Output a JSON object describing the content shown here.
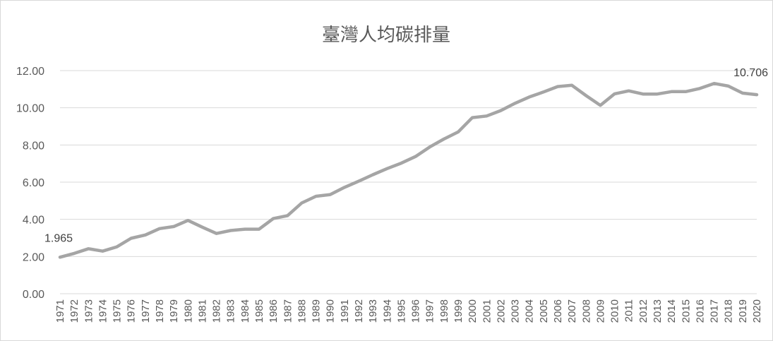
{
  "chart_data": {
    "type": "line",
    "title": "臺灣人均碳排量",
    "xlabel": "",
    "ylabel": "",
    "ylim": [
      0,
      12
    ],
    "yticks": [
      "0.00",
      "2.00",
      "4.00",
      "6.00",
      "8.00",
      "10.00",
      "12.00"
    ],
    "grid": true,
    "legend": "none",
    "color": "#a5a5a5",
    "categories": [
      "1971",
      "1972",
      "1973",
      "1974",
      "1975",
      "1976",
      "1977",
      "1978",
      "1979",
      "1980",
      "1981",
      "1982",
      "1983",
      "1984",
      "1985",
      "1986",
      "1987",
      "1988",
      "1989",
      "1990",
      "1991",
      "1992",
      "1993",
      "1994",
      "1995",
      "1996",
      "1997",
      "1998",
      "1999",
      "2000",
      "2001",
      "2002",
      "2003",
      "2004",
      "2005",
      "2006",
      "2007",
      "2008",
      "2009",
      "2010",
      "2011",
      "2012",
      "2013",
      "2014",
      "2015",
      "2016",
      "2017",
      "2018",
      "2019",
      "2020"
    ],
    "values": [
      1.965,
      2.17,
      2.42,
      2.29,
      2.52,
      2.98,
      3.16,
      3.5,
      3.61,
      3.94,
      3.58,
      3.24,
      3.4,
      3.47,
      3.47,
      4.04,
      4.2,
      4.88,
      5.24,
      5.33,
      5.72,
      6.05,
      6.4,
      6.73,
      7.02,
      7.38,
      7.89,
      8.32,
      8.7,
      9.47,
      9.56,
      9.85,
      10.24,
      10.58,
      10.85,
      11.14,
      11.21,
      10.65,
      10.13,
      10.75,
      10.91,
      10.74,
      10.74,
      10.87,
      10.87,
      11.04,
      11.31,
      11.17,
      10.79,
      10.706
    ],
    "data_labels": [
      {
        "index": 0,
        "text": "1.965"
      },
      {
        "index": 49,
        "text": "10.706"
      }
    ]
  }
}
